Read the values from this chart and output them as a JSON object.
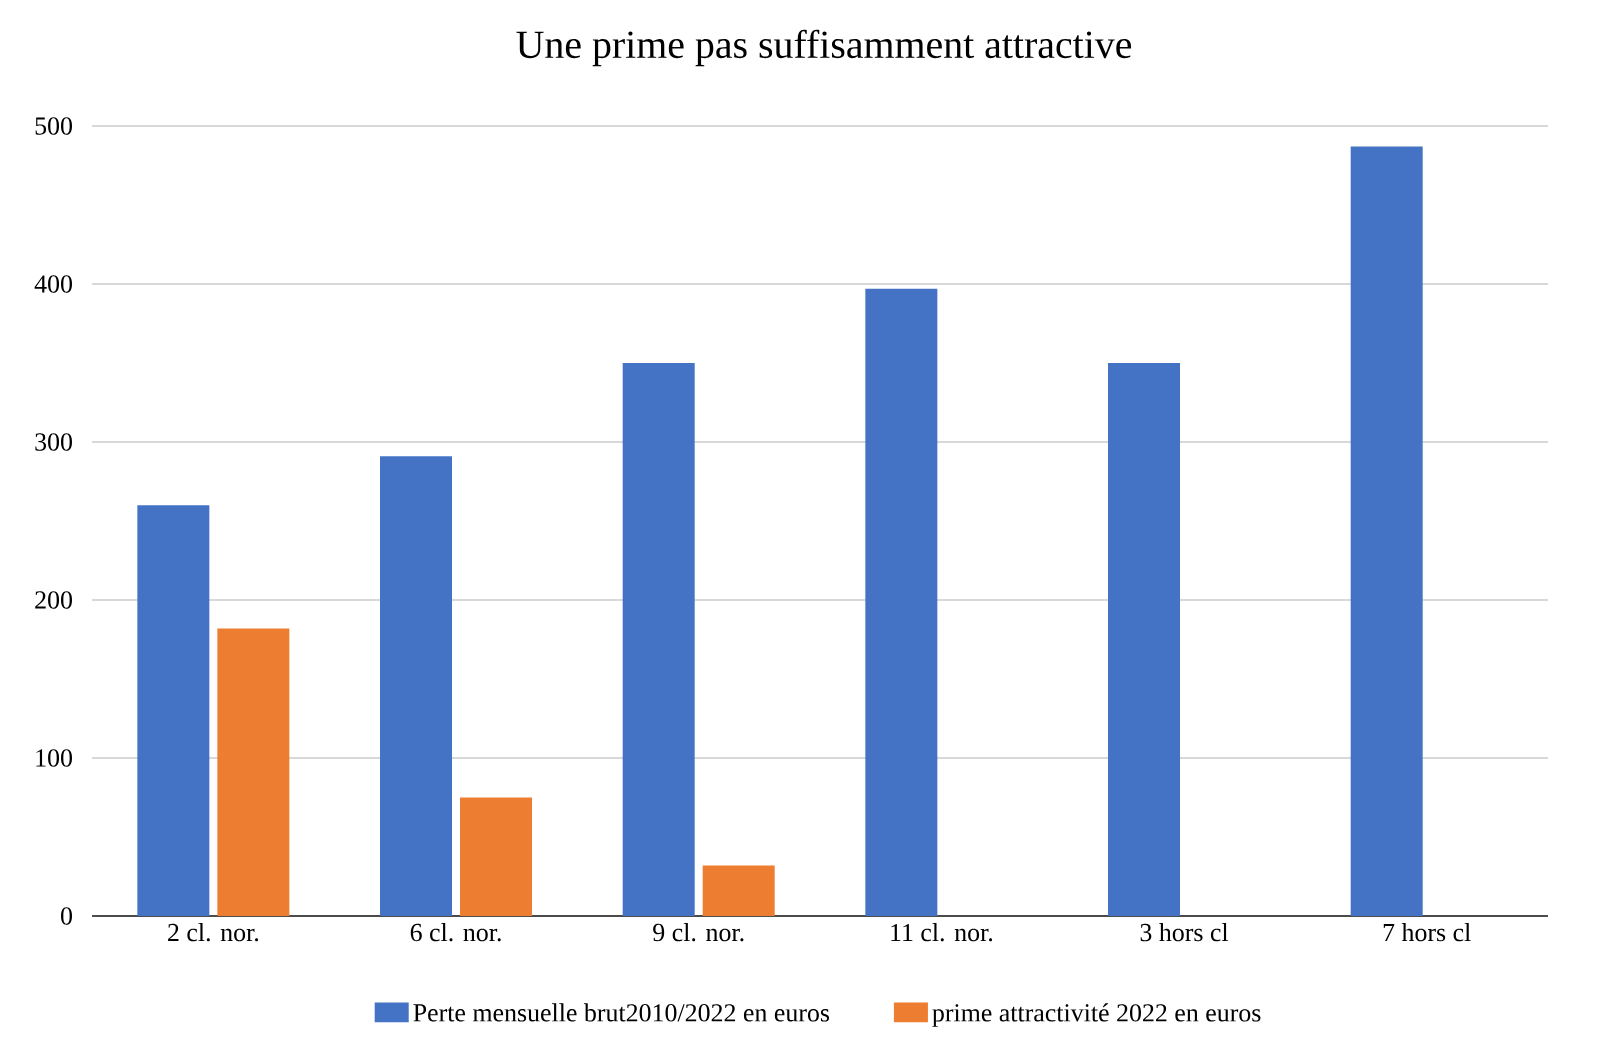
{
  "chart_data": {
    "type": "bar",
    "title": "Une prime pas suffisamment attractive",
    "categories": [
      "2 cl. nor.",
      "6 cl. nor.",
      "9 cl. nor.",
      "11 cl. nor.",
      "3 hors cl",
      "7 hors cl"
    ],
    "series": [
      {
        "name": "Perte mensuelle brut2010/2022 en euros",
        "color": "#4472c4",
        "values": [
          260,
          291,
          350,
          397,
          350,
          487
        ]
      },
      {
        "name": "prime attractivité 2022 en euros",
        "color": "#ed7d31",
        "values": [
          182,
          75,
          32,
          null,
          null,
          null
        ]
      }
    ],
    "ylim": [
      0,
      500
    ],
    "yticks": [
      0,
      100,
      200,
      300,
      400,
      500
    ],
    "grid": "y",
    "legend": "bottom"
  }
}
